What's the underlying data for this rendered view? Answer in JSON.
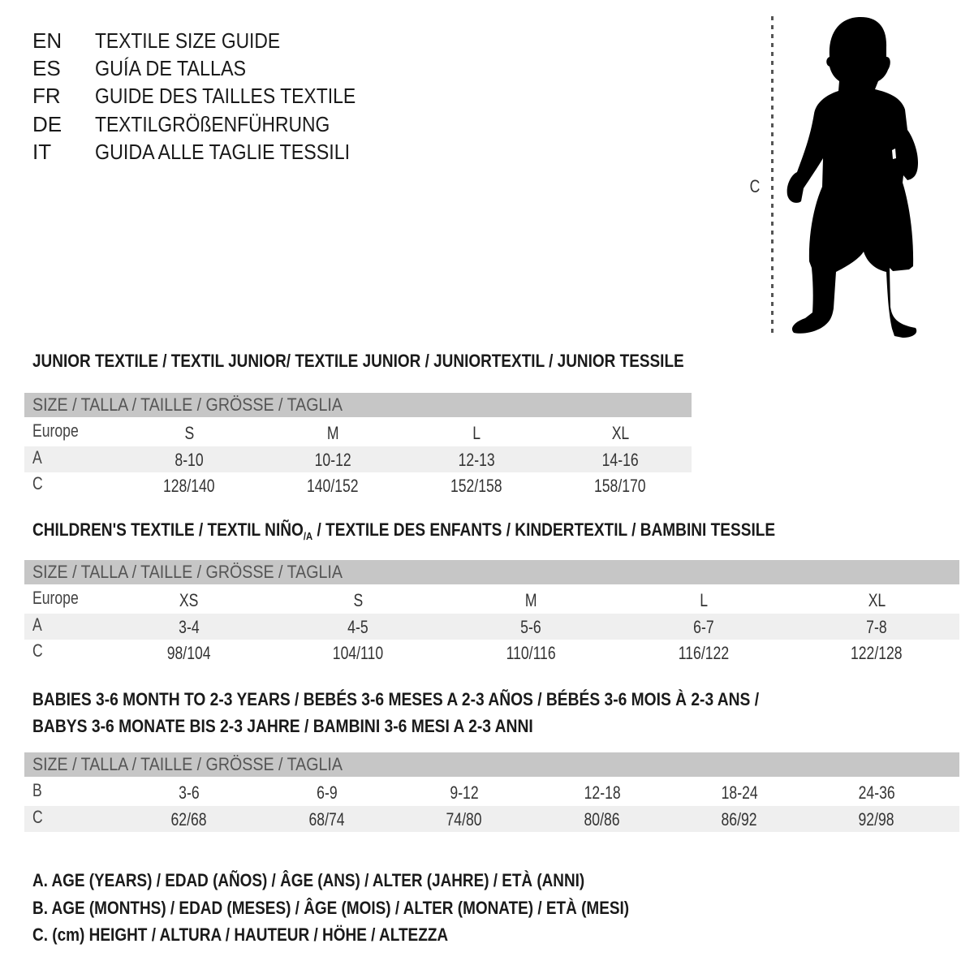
{
  "header": [
    {
      "code": "EN",
      "text": "TEXTILE SIZE GUIDE"
    },
    {
      "code": "ES",
      "text": "GUÍA DE TALLAS"
    },
    {
      "code": "FR",
      "text": "GUIDE DES TAILLES TEXTILE"
    },
    {
      "code": "DE",
      "text": "TEXTILGRÖßENFÜHRUNG"
    },
    {
      "code": "IT",
      "text": "GUIDA ALLE TAGLIE TESSILI"
    }
  ],
  "illustration": {
    "icon": "child-silhouette-icon",
    "height_label": "C"
  },
  "junior": {
    "title": "JUNIOR TEXTILE / TEXTIL JUNIOR/ TEXTILE JUNIOR / JUNIORTEXTIL / JUNIOR TESSILE",
    "size_header": "SIZE / TALLA / TAILLE / GRÖSSE / TAGLIA",
    "rows": [
      {
        "label": "Europe",
        "values": [
          "S",
          "M",
          "L",
          "XL"
        ]
      },
      {
        "label": "A",
        "values": [
          "8-10",
          "10-12",
          "12-13",
          "14-16"
        ]
      },
      {
        "label": "C",
        "values": [
          "128/140",
          "140/152",
          "152/158",
          "158/170"
        ]
      }
    ]
  },
  "children": {
    "title_part1": "CHILDREN'S TEXTILE / TEXTIL NIÑO",
    "title_sub": "/A",
    "title_part2": " / TEXTILE DES ENFANTS / KINDERTEXTIL / BAMBINI TESSILE",
    "size_header": "SIZE / TALLA / TAILLE / GRÖSSE / TAGLIA",
    "rows": [
      {
        "label": "Europe",
        "values": [
          "XS",
          "S",
          "M",
          "L",
          "XL"
        ]
      },
      {
        "label": "A",
        "values": [
          "3-4",
          "4-5",
          "5-6",
          "6-7",
          "7-8"
        ]
      },
      {
        "label": "C",
        "values": [
          "98/104",
          "104/110",
          "110/116",
          "116/122",
          "122/128"
        ]
      }
    ]
  },
  "babies": {
    "title_line1": "BABIES 3-6 MONTH TO 2-3 YEARS / BEBÉS 3-6 MESES A 2-3 AÑOS / BÉBÉS 3-6 MOIS À 2-3 ANS /",
    "title_line2": "BABYS 3-6 MONATE BIS 2-3 JAHRE / BAMBINI 3-6 MESI A 2-3 ANNI",
    "size_header": "SIZE / TALLA / TAILLE / GRÖSSE / TAGLIA",
    "rows": [
      {
        "label": "B",
        "values": [
          "3-6",
          "6-9",
          "9-12",
          "12-18",
          "18-24",
          "24-36"
        ]
      },
      {
        "label": "C",
        "values": [
          "62/68",
          "68/74",
          "74/80",
          "80/86",
          "86/92",
          "92/98"
        ]
      }
    ]
  },
  "legend": [
    "A. AGE (YEARS) / EDAD (AÑOS) / ÂGE (ANS) / ALTER (JAHRE) / ETÀ (ANNI)",
    "B. AGE (MONTHS) / EDAD (MESES) / ÂGE (MOIS) / ALTER (MONATE) / ETÀ (MESI)",
    "C. (cm) HEIGHT / ALTURA / HAUTEUR / HÖHE / ALTEZZA"
  ],
  "colors": {
    "header_bar": "#c6c6c6",
    "alt_row": "#efefef",
    "text": "#1a1a1a"
  }
}
